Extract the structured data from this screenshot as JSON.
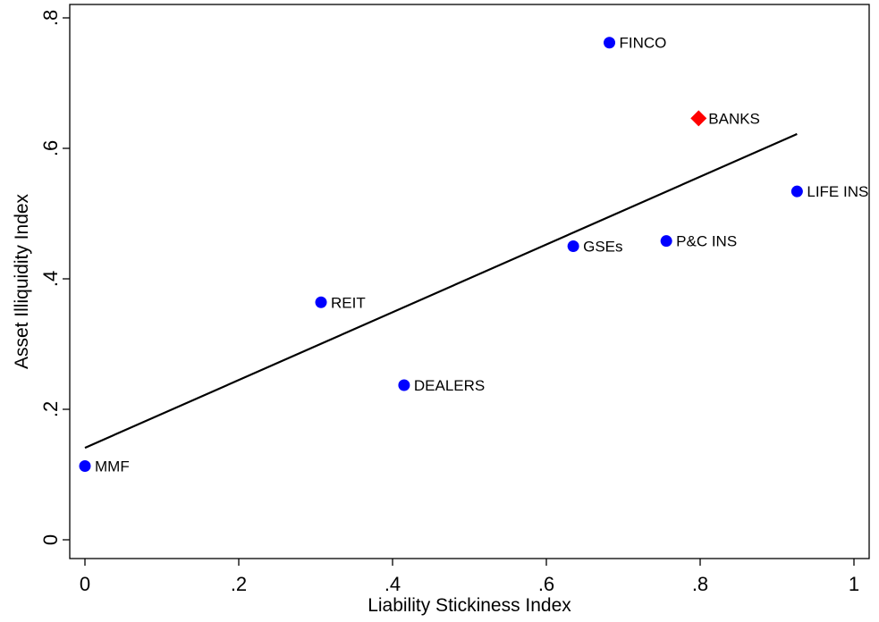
{
  "chart_data": {
    "type": "scatter",
    "title": "",
    "xlabel": "Liability Stickiness Index",
    "ylabel": "Asset Illiquidity Index",
    "xlim": [
      0,
      1
    ],
    "ylim": [
      0,
      0.8
    ],
    "x_ticks": [
      {
        "value": 0,
        "label": "0"
      },
      {
        "value": 0.2,
        "label": ".2"
      },
      {
        "value": 0.4,
        "label": ".4"
      },
      {
        "value": 0.6,
        "label": ".6"
      },
      {
        "value": 0.8,
        "label": ".8"
      },
      {
        "value": 1,
        "label": "1"
      }
    ],
    "y_ticks": [
      {
        "value": 0,
        "label": "0"
      },
      {
        "value": 0.2,
        "label": ".2"
      },
      {
        "value": 0.4,
        "label": ".4"
      },
      {
        "value": 0.6,
        "label": ".6"
      },
      {
        "value": 0.8,
        "label": ".8"
      }
    ],
    "grid": false,
    "legend": "none",
    "points": [
      {
        "label": "MMF",
        "x": 0.0,
        "y": 0.113,
        "marker": "circle",
        "color": "#0000ff"
      },
      {
        "label": "REIT",
        "x": 0.307,
        "y": 0.364,
        "marker": "circle",
        "color": "#0000ff"
      },
      {
        "label": "DEALERS",
        "x": 0.415,
        "y": 0.237,
        "marker": "circle",
        "color": "#0000ff"
      },
      {
        "label": "GSEs",
        "x": 0.635,
        "y": 0.45,
        "marker": "circle",
        "color": "#0000ff"
      },
      {
        "label": "FINCO",
        "x": 0.682,
        "y": 0.762,
        "marker": "circle",
        "color": "#0000ff"
      },
      {
        "label": "P&C INS",
        "x": 0.756,
        "y": 0.458,
        "marker": "circle",
        "color": "#0000ff"
      },
      {
        "label": "BANKS",
        "x": 0.798,
        "y": 0.646,
        "marker": "diamond",
        "color": "#ff0000"
      },
      {
        "label": "LIFE INS",
        "x": 0.926,
        "y": 0.534,
        "marker": "circle",
        "color": "#0000ff"
      }
    ],
    "fit_line": {
      "x": [
        0.0,
        0.926
      ],
      "y": [
        0.141,
        0.622
      ],
      "color": "#000000"
    }
  }
}
